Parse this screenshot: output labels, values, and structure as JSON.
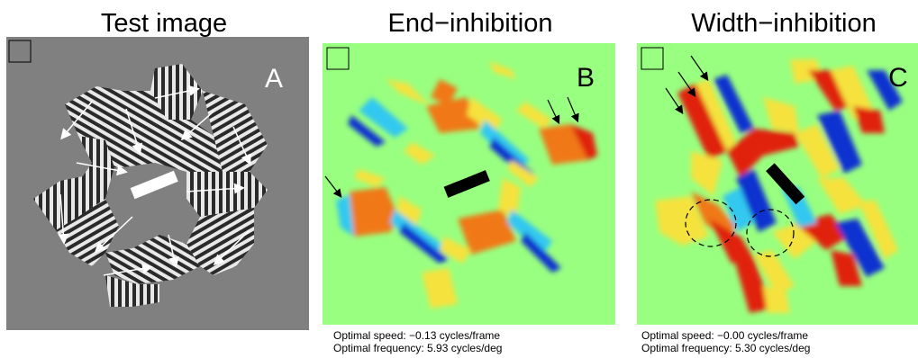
{
  "panels": [
    {
      "title": "Test image",
      "letter": "A",
      "background": "#808080",
      "bar_color": "#ffffff",
      "letter_color": "#ffffff",
      "caption": [
        "",
        ""
      ]
    },
    {
      "title": "End−inhibition",
      "letter": "B",
      "background": "#99ff80",
      "bar_color": "#000000",
      "letter_color": "#000000",
      "caption": [
        "Optimal speed: −0.13 cycles/frame",
        "Optimal frequency: 5.93 cycles/deg"
      ]
    },
    {
      "title": "Width−inhibition",
      "letter": "C",
      "background": "#99ff80",
      "bar_color": "#000000",
      "letter_color": "#000000",
      "caption": [
        "Optimal speed: −0.00 cycles/frame",
        "Optimal frequency: 5.30 cycles/deg"
      ]
    }
  ],
  "colors": {
    "grating_light": "#e8e8e8",
    "grating_dark": "#2a2a2a",
    "red": "#e02010",
    "orange": "#f07818",
    "yellow": "#f5e23c",
    "cyan": "#30c8f0",
    "blue": "#1030d0"
  }
}
